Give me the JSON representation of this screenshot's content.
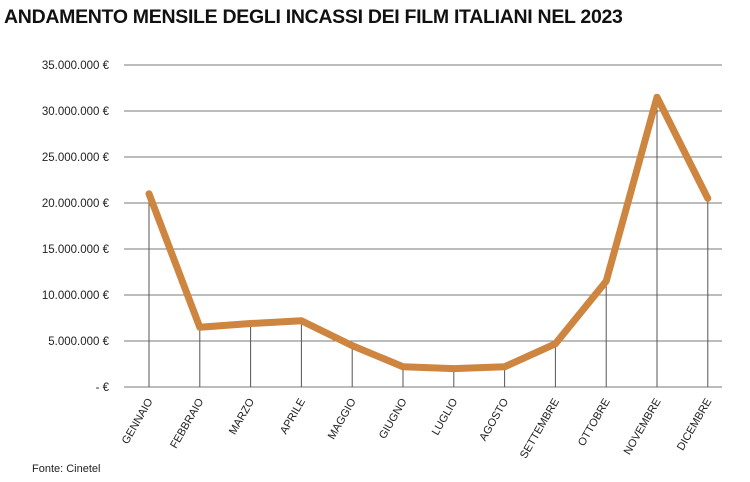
{
  "title": "ANDAMENTO MENSILE DEGLI INCASSI DEI FILM ITALIANI NEL 2023",
  "source": "Fonte: Cinetel",
  "colors": {
    "line": "#cd853f",
    "grid": "#7a7a7a",
    "drop": "#555555"
  },
  "chart_data": {
    "type": "line",
    "title": "ANDAMENTO MENSILE DEGLI INCASSI DEI FILM ITALIANI NEL 2023",
    "xlabel": "",
    "ylabel": "",
    "categories": [
      "GENNAIO",
      "FEBBRAIO",
      "MARZO",
      "APRILE",
      "MAGGIO",
      "GIUGNO",
      "LUGLIO",
      "AGOSTO",
      "SETTEMBRE",
      "OTTOBRE",
      "NOVEMBRE",
      "DICEMBRE"
    ],
    "values": [
      21000000,
      6500000,
      6900000,
      7200000,
      4500000,
      2200000,
      2000000,
      2200000,
      4700000,
      11500000,
      31500000,
      20500000
    ],
    "ylim": [
      0,
      35000000
    ],
    "yticks": [
      0,
      5000000,
      10000000,
      15000000,
      20000000,
      25000000,
      30000000,
      35000000
    ],
    "ytick_labels": [
      "-   €",
      "5.000.000 €",
      "10.000.000 €",
      "15.000.000 €",
      "20.000.000 €",
      "25.000.000 €",
      "30.000.000 €",
      "35.000.000 €"
    ],
    "grid": true,
    "drop_lines": true,
    "legend": "none"
  }
}
